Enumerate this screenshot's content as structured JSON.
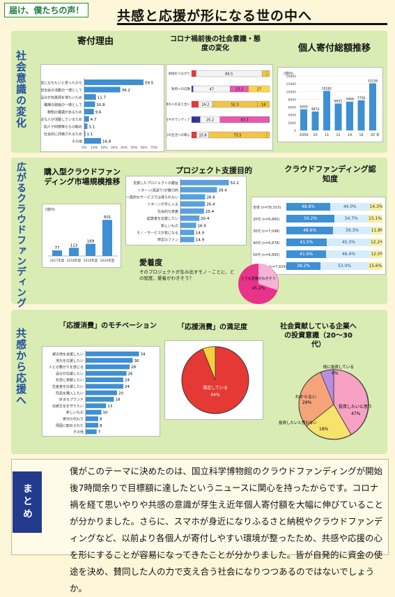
{
  "header": {
    "subtitle": "届け、僕たちの声！",
    "title": "共感と応援が形になる世の中へ"
  },
  "sections": {
    "s1": "社会意識の変化",
    "s2": "広がるクラウドファンディング",
    "s3": "共感から応援へ",
    "summary_label": "まとめ"
  },
  "panel_reasons": {
    "title": "寄付理由",
    "items": [
      {
        "label": "社会の役に立ちたいと思ったから",
        "value": 59.5
      },
      {
        "label": "町内会・自治会の活動の一環として",
        "value": 36.2
      },
      {
        "label": "自分が充実感を得たいため",
        "value": 11.7
      },
      {
        "label": "職場の取組の一環として",
        "value": 10.8
      },
      {
        "label": "税制の優遇があるため",
        "value": 9.6
      },
      {
        "label": "身近な人が活動しているため",
        "value": 4.7
      },
      {
        "label": "知人や同僚等からの勧め",
        "value": 3.1
      },
      {
        "label": "社会的に評価されるため",
        "value": 1.1
      },
      {
        "label": "その他",
        "value": 16.8
      }
    ],
    "axis": [
      "0%",
      "10%",
      "20%",
      "30%",
      "40%",
      "50%",
      "60%",
      "70%"
    ]
  },
  "panel_covid": {
    "title": "コロナ禍前後の社会意識・態度の変化",
    "rows": [
      {
        "label": "地域のつながり",
        "values": [
          5.8,
          84.5,
          5.9,
          3.8
        ]
      },
      {
        "label": "政府への信頼",
        "values": [
          2.1,
          47.0,
          23.2,
          27.0
        ]
      },
      {
        "label": "普通の人の支え合い",
        "values": [
          8.0,
          16.2,
          52.3,
          14.0
        ]
      },
      {
        "label": "寄付やボランティア",
        "values": [
          11.1,
          25.2,
          63.3,
          0.4
        ]
      },
      {
        "label": "自分の生活への関心",
        "values": [
          6.4,
          15.8,
          73.5,
          4.3
        ]
      }
    ]
  },
  "panel_donation": {
    "title": "個人寄付総額推移",
    "unit": "(億円)",
    "years": [
      "2009",
      "10",
      "11",
      "12",
      "14",
      "16",
      "20"
    ],
    "values": [
      5455,
      4874,
      10182,
      6931,
      7409,
      7756,
      12126
    ],
    "yticks": [
      "0",
      "2000",
      "4000",
      "6000",
      "8000",
      "10000",
      "12000",
      "14000"
    ],
    "label_year": "年"
  },
  "panel_market": {
    "title": "購入型クラウドファンディング市場規模推移",
    "unit": "(億円)",
    "years": [
      "2017年度",
      "2018年度",
      "2019年度",
      "2020年度"
    ],
    "values": [
      77,
      113,
      169,
      501
    ]
  },
  "panel_purpose": {
    "title": "プロジェクト支援目的",
    "items": [
      {
        "label": "支援したプロジェクトの趣旨",
        "value": 52.2
      },
      {
        "label": "リターン(見返り)が魅力的",
        "value": 39.4
      },
      {
        "label": "一般的なサービスでは得られない",
        "value": 26.6
      },
      {
        "label": "リターンが手に入る",
        "value": 26.4
      },
      {
        "label": "社会的な意義",
        "value": 25.4
      },
      {
        "label": "起案者を応援したい",
        "value": 20.4
      },
      {
        "label": "新しいもの",
        "value": 16.9
      },
      {
        "label": "モノ・サービスが気になる",
        "value": 14.9
      },
      {
        "label": "特定のファン",
        "value": 14.9
      }
    ]
  },
  "panel_awareness": {
    "title": "クラウドファンディング認知度",
    "rows": [
      {
        "label": "全体 (n=35,510)",
        "a": "48.8%",
        "b": "44.0%",
        "c": "14.3%"
      },
      {
        "label": "20代 (n=6,860)",
        "a": "50.2%",
        "b": "34.7%",
        "c": "15.1%"
      },
      {
        "label": "30代 (n=7,048)",
        "a": "48.6%",
        "b": "39.3%",
        "c": "11.8%"
      },
      {
        "label": "40代 (n=6,878)",
        "a": "41.5%",
        "b": "45.3%",
        "c": "12.2%"
      },
      {
        "label": "50代 (n=6,895)",
        "a": "41.6%",
        "b": "46.4%",
        "c": "12.0%"
      },
      {
        "label": "60歳以上 (n=7,829)",
        "a": "38.2%",
        "b": "53.0%",
        "c": "15.6%"
      }
    ]
  },
  "panel_attachment": {
    "title": "愛着度",
    "question": "そのプロジェクトが生み出すモノ・ことに、どの程度、愛着がわきそう？",
    "pie_label": "とても愛着がわきそう",
    "pie_value": "45.2%"
  },
  "panel_motivation": {
    "title": "「応援消費」のモチベーション",
    "items": [
      {
        "label": "被災地を支援したい",
        "value": 34
      },
      {
        "label": "地元を応援したい",
        "value": 30
      },
      {
        "label": "人との繋がりを感じる",
        "value": 28
      },
      {
        "label": "自分が応援したい",
        "value": 26
      },
      {
        "label": "社会に貢献したい",
        "value": 24
      },
      {
        "label": "生産者を応援したい",
        "value": 24
      },
      {
        "label": "商品を購入したい",
        "value": 20
      },
      {
        "label": "好きなブランド",
        "value": 18
      },
      {
        "label": "伝統文化を守りたい",
        "value": 13
      },
      {
        "label": "新しいもの",
        "value": 10
      },
      {
        "label": "寄付の代わり",
        "value": 8
      },
      {
        "label": "周囲に勧められた",
        "value": 8
      },
      {
        "label": "その他",
        "value": 7
      }
    ]
  },
  "panel_satisfaction": {
    "title": "「応援消費」の満足度",
    "slice_label": "満足している",
    "slice_value": "94%"
  },
  "panel_investment": {
    "title": "社会貢献している企業への投資意識（20〜30代）",
    "slices": [
      {
        "label": "わからない",
        "value": "29%"
      },
      {
        "label": "投資したいと思わない",
        "value": "18%"
      },
      {
        "label": "投資したいと思う",
        "value": "47%"
      },
      {
        "label": "既に投資している",
        "value": "6%"
      }
    ]
  },
  "summary": {
    "text": "僕がこのテーマに決めたのは、国立科学博物館のクラウドファンディングが開始後7時間余りで目標額に達したというニュースに関心を持ったからです。コロナ禍を経て思いやりや共感の意識が芽生え近年個人寄付額を大幅に伸びていることが分かりました。さらに、スマホが身近になりふるさと納税やクラウドファンディングなど、以前より各個人が寄付しやすい環境が整ったため、共感や応援の心を形にすることが容易になってきたことが分かりました。皆が自発的に資金の使途を決め、賛同した人の力で支え合う社会になりつつあるのではないでしょうか。"
  }
}
